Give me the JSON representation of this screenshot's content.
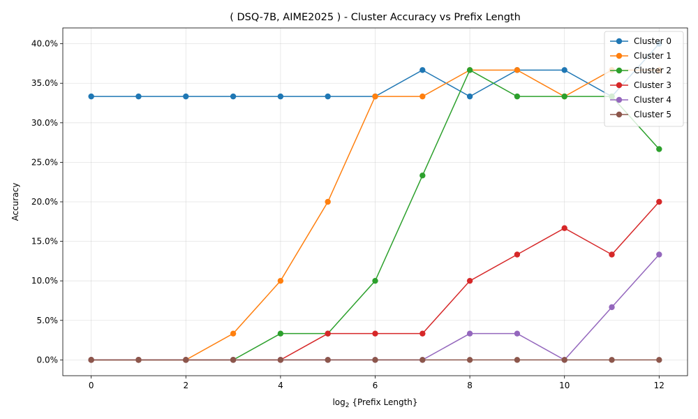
{
  "chart_data": {
    "type": "line",
    "title": "( DSQ-7B, AIME2025 ) - Cluster Accuracy vs Prefix Length",
    "xlabel_prefix": "log",
    "xlabel_sub": "2",
    "xlabel_rest": " {Prefix Length}",
    "ylabel": "Accuracy",
    "x": [
      0,
      1,
      2,
      3,
      4,
      5,
      6,
      7,
      8,
      9,
      10,
      11,
      12
    ],
    "xlim": [
      -0.6,
      12.6
    ],
    "ylim": [
      -0.02,
      0.42
    ],
    "xticks": [
      0,
      2,
      4,
      6,
      8,
      10,
      12
    ],
    "yticks": [
      0.0,
      0.05,
      0.1,
      0.15,
      0.2,
      0.25,
      0.3,
      0.35,
      0.4
    ],
    "ytick_labels": [
      "0.0%",
      "5.0%",
      "10.0%",
      "15.0%",
      "20.0%",
      "25.0%",
      "30.0%",
      "35.0%",
      "40.0%"
    ],
    "grid": true,
    "legend_position": "top-right",
    "series": [
      {
        "name": "Cluster 0",
        "color": "#1f77b4",
        "values": [
          0.3333,
          0.3333,
          0.3333,
          0.3333,
          0.3333,
          0.3333,
          0.3333,
          0.3667,
          0.3333,
          0.3667,
          0.3667,
          0.3333,
          0.4
        ]
      },
      {
        "name": "Cluster 1",
        "color": "#ff7f0e",
        "values": [
          0,
          0,
          0,
          0.0333,
          0.1,
          0.2,
          0.3333,
          0.3333,
          0.3667,
          0.3667,
          0.3333,
          0.3667,
          0.3667
        ]
      },
      {
        "name": "Cluster 2",
        "color": "#2ca02c",
        "values": [
          0,
          0,
          0,
          0,
          0.0333,
          0.0333,
          0.1,
          0.2333,
          0.3667,
          0.3333,
          0.3333,
          0.3333,
          0.2667
        ]
      },
      {
        "name": "Cluster 3",
        "color": "#d62728",
        "values": [
          0,
          0,
          0,
          0,
          0,
          0.0333,
          0.0333,
          0.0333,
          0.1,
          0.1333,
          0.1667,
          0.1333,
          0.2
        ]
      },
      {
        "name": "Cluster 4",
        "color": "#9467bd",
        "values": [
          0,
          0,
          0,
          0,
          0,
          0,
          0,
          0,
          0.0333,
          0.0333,
          0,
          0.0667,
          0.1333
        ]
      },
      {
        "name": "Cluster 5",
        "color": "#8c564b",
        "values": [
          0,
          0,
          0,
          0,
          0,
          0,
          0,
          0,
          0,
          0,
          0,
          0,
          0
        ]
      }
    ]
  }
}
